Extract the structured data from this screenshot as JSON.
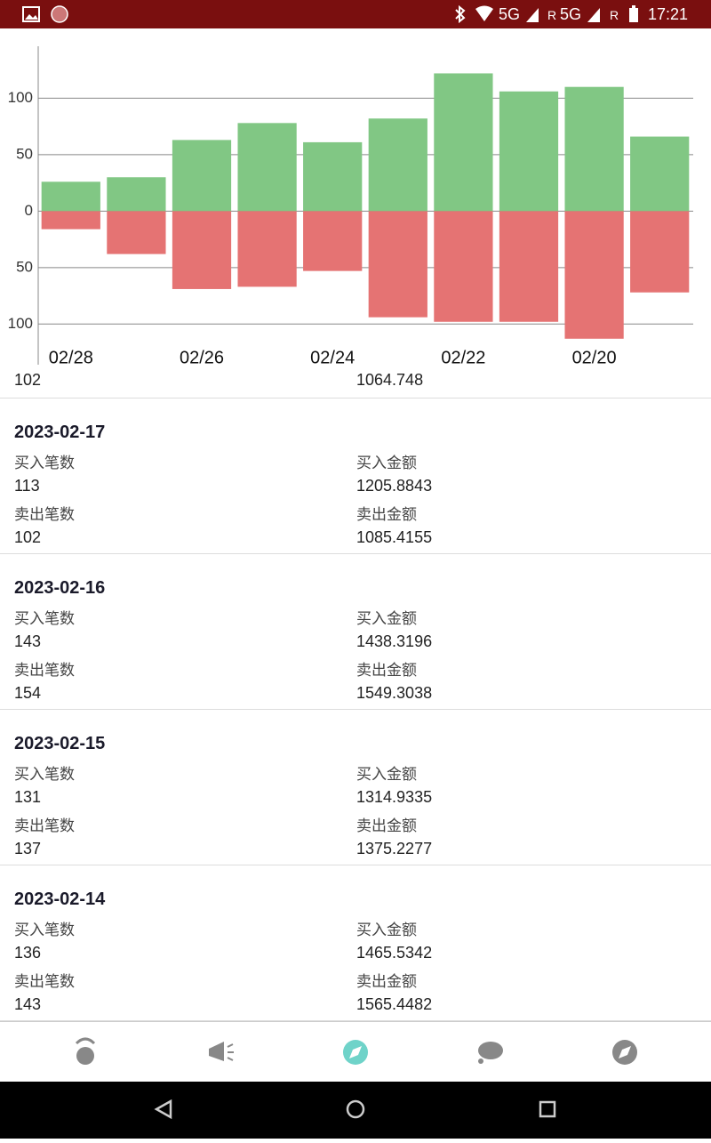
{
  "status_bar": {
    "network_1": "5G",
    "roaming_1": "R",
    "network_2": "5G",
    "roaming_2": "R",
    "time": "17:21"
  },
  "chart_data": {
    "type": "bar",
    "stacked": true,
    "categories": [
      "02/28",
      null,
      "02/26",
      null,
      "02/24",
      null,
      "02/22",
      null,
      "02/20",
      null
    ],
    "series": [
      {
        "color": "#81c784",
        "values": [
          26,
          30,
          63,
          78,
          61,
          82,
          122,
          106,
          110,
          66
        ]
      },
      {
        "color": "#e57373",
        "values": [
          -16,
          -38,
          -69,
          -67,
          -53,
          -94,
          -98,
          -98,
          -113,
          -72
        ]
      }
    ],
    "ylim": [
      -136,
      146
    ],
    "yticks": [
      {
        "value": -100,
        "label": "100"
      },
      {
        "value": -50,
        "label": "50"
      },
      0,
      50,
      100
    ],
    "grid": true
  },
  "labels": {
    "buy_count": "买入笔数",
    "buy_amount": "买入金额",
    "sell_count": "卖出笔数",
    "sell_amount": "卖出金额"
  },
  "partial_item": {
    "sell_count": "102",
    "sell_amount": "1064.748"
  },
  "items": [
    {
      "date": "2023-02-17",
      "buy_count": "113",
      "buy_amount": "1205.8843",
      "sell_count": "102",
      "sell_amount": "1085.4155"
    },
    {
      "date": "2023-02-16",
      "buy_count": "143",
      "buy_amount": "1438.3196",
      "sell_count": "154",
      "sell_amount": "1549.3038"
    },
    {
      "date": "2023-02-15",
      "buy_count": "131",
      "buy_amount": "1314.9335",
      "sell_count": "137",
      "sell_amount": "1375.2277"
    },
    {
      "date": "2023-02-14",
      "buy_count": "136",
      "buy_amount": "1465.5342",
      "sell_count": "143",
      "sell_amount": "1565.4482"
    }
  ]
}
